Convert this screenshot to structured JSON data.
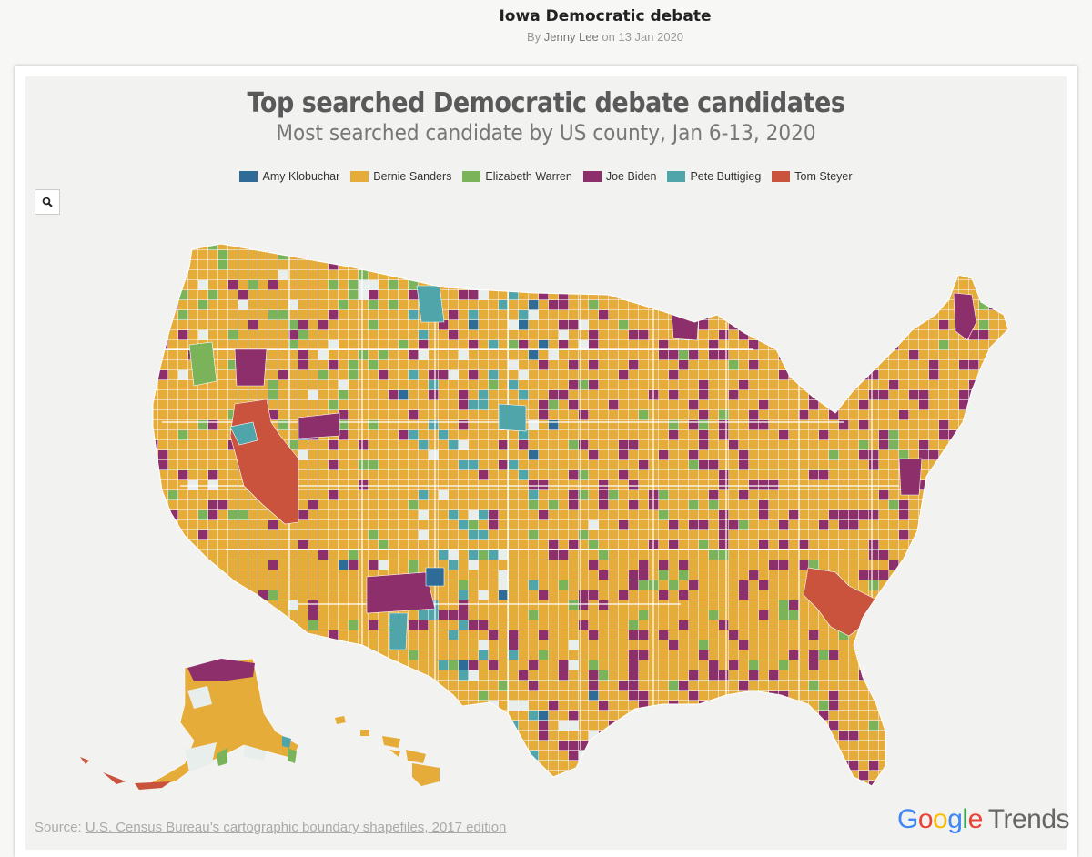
{
  "post": {
    "title": "Iowa Democratic debate",
    "byline_prefix": "By",
    "author": "Jenny Lee",
    "date_prefix": "on",
    "date": "13 Jan 2020"
  },
  "viz": {
    "title": "Top searched Democratic debate candidates",
    "subtitle": "Most searched candidate by US county, Jan 6-13, 2020",
    "legend": [
      {
        "label": "Amy Klobuchar",
        "color": "#2e6b96"
      },
      {
        "label": "Bernie Sanders",
        "color": "#e6ac3a"
      },
      {
        "label": "Elizabeth Warren",
        "color": "#7bb35a"
      },
      {
        "label": "Joe Biden",
        "color": "#8c2f6a"
      },
      {
        "label": "Pete Buttigieg",
        "color": "#4fa5a9"
      },
      {
        "label": "Tom Steyer",
        "color": "#c9533d"
      }
    ],
    "no_data_color": "#e8eeec",
    "zoom_icon": "search-icon",
    "source_prefix": "Source:",
    "source_link": "U.S. Census Bureau’s cartographic boundary shapefiles, 2017 edition",
    "brand": {
      "google": [
        "G",
        "o",
        "o",
        "g",
        "l",
        "e"
      ],
      "product": "Trends"
    }
  }
}
